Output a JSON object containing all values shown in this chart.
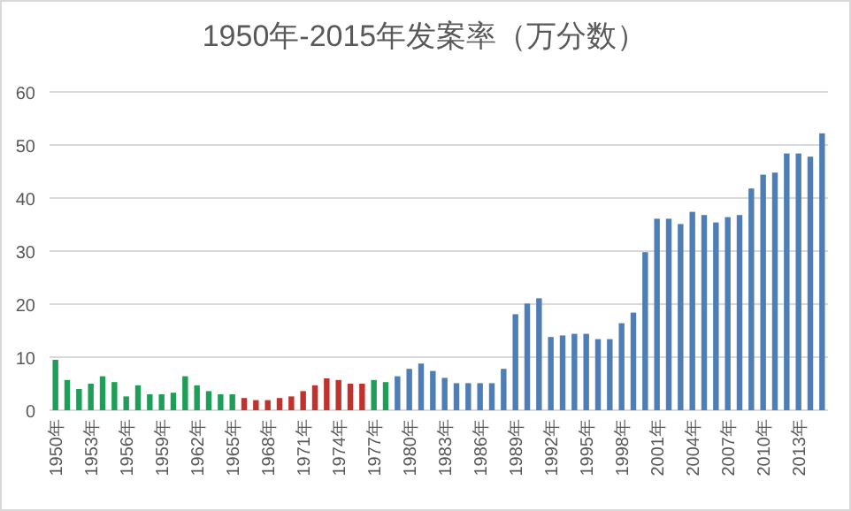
{
  "chart_data": {
    "type": "bar",
    "title": "1950年-2015年发案率（万分数）",
    "categories": [
      "1950年",
      null,
      null,
      "1953年",
      null,
      null,
      "1956年",
      null,
      null,
      "1959年",
      null,
      null,
      "1962年",
      null,
      null,
      "1965年",
      null,
      null,
      "1968年",
      null,
      null,
      "1971年",
      null,
      null,
      "1974年",
      null,
      null,
      "1977年",
      null,
      null,
      "1980年",
      null,
      null,
      "1983年",
      null,
      null,
      "1986年",
      null,
      null,
      "1989年",
      null,
      null,
      "1992年",
      null,
      null,
      "1995年",
      null,
      null,
      "1998年",
      null,
      null,
      "2001年",
      null,
      null,
      "2004年",
      null,
      null,
      "2007年",
      null,
      null,
      "2010年",
      null,
      null,
      "2013年",
      null,
      null
    ],
    "values": [
      9.5,
      5.7,
      4.0,
      5.0,
      6.4,
      5.3,
      2.6,
      4.7,
      3.0,
      3.0,
      3.3,
      6.4,
      4.7,
      3.6,
      3.0,
      3.0,
      2.3,
      1.9,
      1.9,
      2.3,
      2.6,
      3.6,
      4.7,
      6.0,
      5.7,
      5.0,
      5.0,
      5.7,
      5.3,
      6.4,
      7.8,
      8.8,
      7.4,
      6.1,
      5.1,
      5.1,
      5.1,
      5.1,
      7.8,
      18.1,
      20.1,
      21.1,
      13.8,
      14.1,
      14.4,
      14.4,
      13.4,
      13.4,
      16.4,
      18.4,
      29.8,
      36.1,
      36.1,
      35.1,
      37.4,
      36.8,
      35.4,
      36.4,
      36.8,
      41.8,
      44.4,
      44.8,
      48.4,
      48.4,
      47.8,
      52.2
    ],
    "colors": [
      "#1f9e5a",
      "#1f9e5a",
      "#1f9e5a",
      "#1f9e5a",
      "#1f9e5a",
      "#1f9e5a",
      "#1f9e5a",
      "#1f9e5a",
      "#1f9e5a",
      "#1f9e5a",
      "#1f9e5a",
      "#1f9e5a",
      "#1f9e5a",
      "#1f9e5a",
      "#1f9e5a",
      "#1f9e5a",
      "#c0322e",
      "#c0322e",
      "#c0322e",
      "#c0322e",
      "#c0322e",
      "#c0322e",
      "#c0322e",
      "#c0322e",
      "#c0322e",
      "#c0322e",
      "#c0322e",
      "#1f9e5a",
      "#1f9e5a",
      "#4f7db5",
      "#4f7db5",
      "#4f7db5",
      "#4f7db5",
      "#4f7db5",
      "#4f7db5",
      "#4f7db5",
      "#4f7db5",
      "#4f7db5",
      "#4f7db5",
      "#4f7db5",
      "#4f7db5",
      "#4f7db5",
      "#4f7db5",
      "#4f7db5",
      "#4f7db5",
      "#4f7db5",
      "#4f7db5",
      "#4f7db5",
      "#4f7db5",
      "#4f7db5",
      "#4f7db5",
      "#4f7db5",
      "#4f7db5",
      "#4f7db5",
      "#4f7db5",
      "#4f7db5",
      "#4f7db5",
      "#4f7db5",
      "#4f7db5",
      "#4f7db5",
      "#4f7db5",
      "#4f7db5",
      "#4f7db5",
      "#4f7db5",
      "#4f7db5",
      "#4f7db5"
    ],
    "ylim": [
      0,
      60
    ],
    "yticks": [
      0,
      10,
      20,
      30,
      40,
      50,
      60
    ],
    "grid": "y"
  }
}
